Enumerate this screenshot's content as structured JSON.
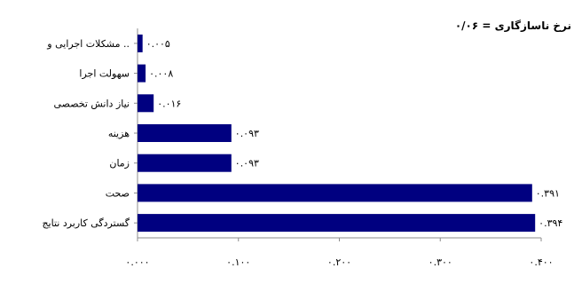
{
  "chart_data": {
    "type": "bar",
    "orientation": "horizontal",
    "annotation": "نرخ ناسازگاری = ۰/۰۶",
    "categories": [
      "مشکلات اجرایی و ..",
      "سهولت اجرا",
      "نیاز دانش تخصصی",
      "هزینه",
      "زمان",
      "صحت",
      "گستردگی کاربرد نتایج"
    ],
    "values": [
      0.005,
      0.008,
      0.016,
      0.093,
      0.093,
      0.391,
      0.394
    ],
    "value_labels": [
      "۰.۰۰۵",
      "۰.۰۰۸",
      "۰.۰۱۶",
      "۰.۰۹۳",
      "۰.۰۹۳",
      "۰.۳۹۱",
      "۰.۳۹۴"
    ],
    "xlim": [
      0,
      0.4
    ],
    "xticks": [
      0,
      0.1,
      0.2,
      0.3,
      0.4
    ],
    "xtick_labels": [
      "۰.۰۰۰",
      "۰.۱۰۰",
      "۰.۲۰۰",
      "۰.۳۰۰",
      "۰.۴۰۰"
    ],
    "grid": false,
    "legend": "none",
    "colors": {
      "bar": "#000080",
      "axis": "#8c8c8c",
      "text": "#000000"
    }
  }
}
